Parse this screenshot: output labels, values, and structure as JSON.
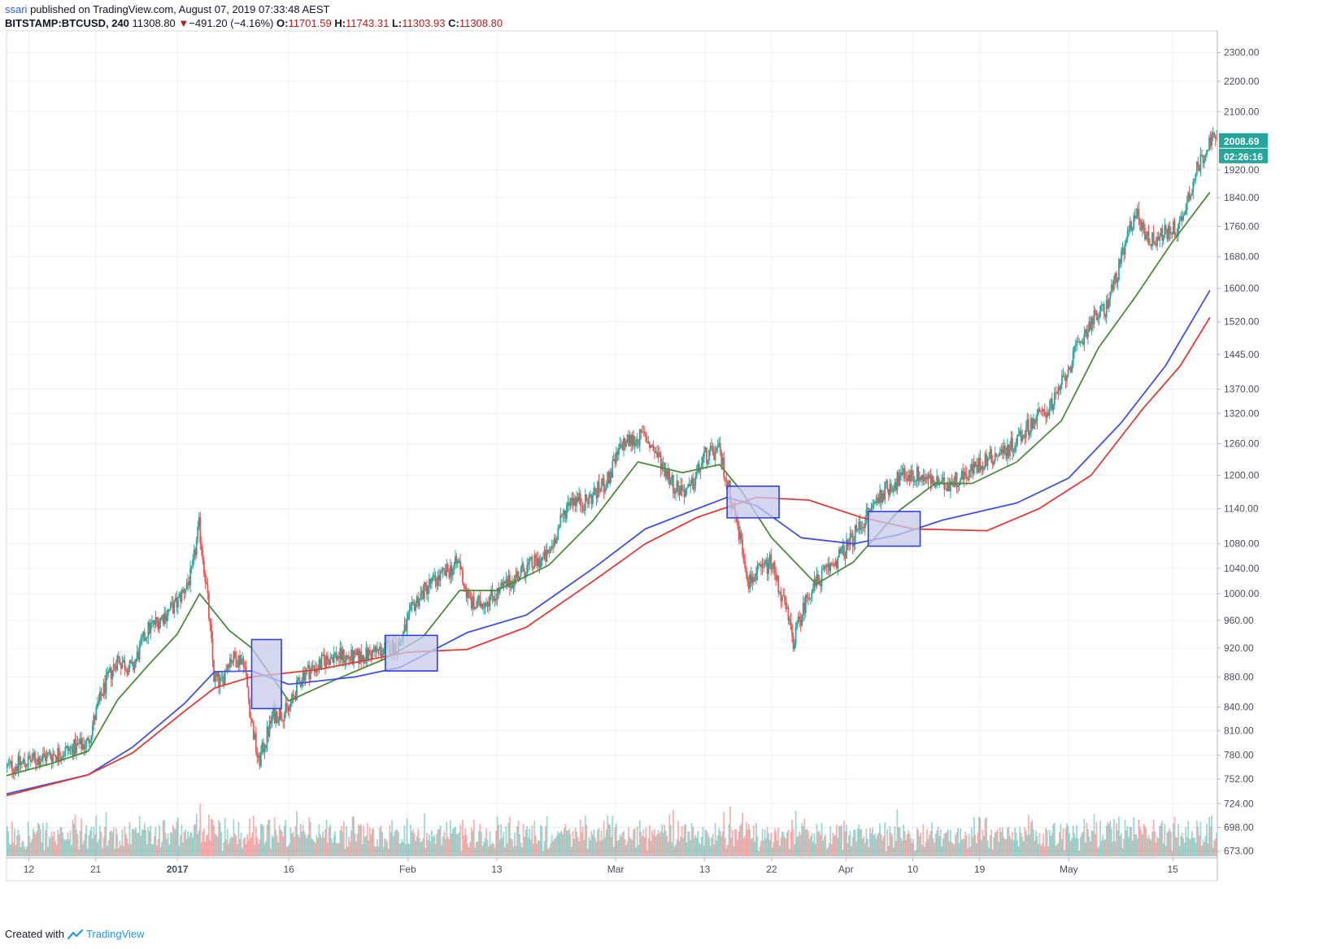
{
  "header": {
    "author": "ssari",
    "published_text": "published on TradingView.com, August 07, 2019 07:33:48 AEST",
    "symbol": "BITSTAMP:BTCUSD, 240",
    "last": "11308.80",
    "change_arrow": "▼",
    "change": "−491.20 (−4.16%)",
    "o_label": "O:",
    "o_value": "11701.59",
    "h_label": "H:",
    "h_value": "11743.31",
    "l_label": "L:",
    "l_value": "11303.93",
    "c_label": "C:",
    "c_value": "11308.80"
  },
  "footer": {
    "created_with": "Created with",
    "brand": "TradingView"
  },
  "colors": {
    "up": "#26a69a",
    "down": "#ef5350",
    "ema_short": "#4c8a3c",
    "ema_mid": "#3f51e6",
    "ema_long": "#e53935",
    "grid": "#eceff2",
    "box_fill": "#c5cae9",
    "box_stroke": "#2f3fe0",
    "price_badge": "#26a69a"
  },
  "chart_data": {
    "type": "candlestick",
    "y_scale": "log",
    "ylim": [
      666,
      2360
    ],
    "y_ticks": [
      2300,
      2200,
      2100,
      1920,
      1840,
      1760,
      1680,
      1600,
      1520,
      1445,
      1370,
      1320,
      1260,
      1200,
      1140,
      1080,
      1040,
      1000,
      960,
      920,
      880,
      840,
      810,
      780,
      752,
      724,
      698,
      673
    ],
    "y_tick_labels": [
      "2300.00",
      "2200.00",
      "2100.00",
      "1920.00",
      "1840.00",
      "1760.00",
      "1680.00",
      "1600.00",
      "1520.00",
      "1445.00",
      "1370.00",
      "1320.00",
      "1260.00",
      "1200.00",
      "1140.00",
      "1080.00",
      "1040.00",
      "1000.00",
      "960.00",
      "920.00",
      "880.00",
      "840.00",
      "810.00",
      "780.00",
      "752.00",
      "724.00",
      "698.00",
      "673.00"
    ],
    "x_tick_labels": [
      "12",
      "21",
      "2017",
      "16",
      "Feb",
      "13",
      "Mar",
      "13",
      "22",
      "Apr",
      "10",
      "19",
      "May",
      "15"
    ],
    "x_tick_dates": [
      "2016-12-12",
      "2016-12-21",
      "2017-01-01",
      "2017-01-16",
      "2017-02-01",
      "2017-02-13",
      "2017-03-01",
      "2017-03-13",
      "2017-03-22",
      "2017-04-01",
      "2017-04-10",
      "2017-04-19",
      "2017-05-01",
      "2017-05-15"
    ],
    "x_range": [
      "2016-12-09",
      "2017-05-21"
    ],
    "last_price": "2008.69",
    "countdown": "02:26:16",
    "price_path": [
      [
        "2016-12-09",
        765
      ],
      [
        "2016-12-13",
        775
      ],
      [
        "2016-12-17",
        785
      ],
      [
        "2016-12-20",
        795
      ],
      [
        "2016-12-22",
        860
      ],
      [
        "2016-12-24",
        905
      ],
      [
        "2016-12-26",
        890
      ],
      [
        "2016-12-28",
        945
      ],
      [
        "2016-12-30",
        965
      ],
      [
        "2017-01-01",
        985
      ],
      [
        "2017-01-03",
        1030
      ],
      [
        "2017-01-04",
        1110
      ],
      [
        "2017-01-05",
        1010
      ],
      [
        "2017-01-06",
        880
      ],
      [
        "2017-01-07",
        870
      ],
      [
        "2017-01-08",
        905
      ],
      [
        "2017-01-10",
        905
      ],
      [
        "2017-01-11",
        825
      ],
      [
        "2017-01-12",
        770
      ],
      [
        "2017-01-14",
        830
      ],
      [
        "2017-01-16",
        835
      ],
      [
        "2017-01-18",
        885
      ],
      [
        "2017-01-20",
        895
      ],
      [
        "2017-01-22",
        910
      ],
      [
        "2017-01-25",
        905
      ],
      [
        "2017-01-28",
        915
      ],
      [
        "2017-01-31",
        925
      ],
      [
        "2017-02-02",
        985
      ],
      [
        "2017-02-04",
        1015
      ],
      [
        "2017-02-06",
        1030
      ],
      [
        "2017-02-08",
        1050
      ],
      [
        "2017-02-09",
        1000
      ],
      [
        "2017-02-10",
        980
      ],
      [
        "2017-02-13",
        1000
      ],
      [
        "2017-02-17",
        1040
      ],
      [
        "2017-02-20",
        1060
      ],
      [
        "2017-02-23",
        1160
      ],
      [
        "2017-02-25",
        1150
      ],
      [
        "2017-02-28",
        1190
      ],
      [
        "2017-03-02",
        1260
      ],
      [
        "2017-03-05",
        1275
      ],
      [
        "2017-03-07",
        1230
      ],
      [
        "2017-03-09",
        1180
      ],
      [
        "2017-03-11",
        1170
      ],
      [
        "2017-03-13",
        1235
      ],
      [
        "2017-03-15",
        1245
      ],
      [
        "2017-03-17",
        1140
      ],
      [
        "2017-03-19",
        1020
      ],
      [
        "2017-03-20",
        1030
      ],
      [
        "2017-03-22",
        1050
      ],
      [
        "2017-03-24",
        975
      ],
      [
        "2017-03-25",
        930
      ],
      [
        "2017-03-27",
        1000
      ],
      [
        "2017-03-29",
        1030
      ],
      [
        "2017-04-01",
        1070
      ],
      [
        "2017-04-04",
        1130
      ],
      [
        "2017-04-06",
        1170
      ],
      [
        "2017-04-09",
        1200
      ],
      [
        "2017-04-11",
        1200
      ],
      [
        "2017-04-14",
        1180
      ],
      [
        "2017-04-17",
        1200
      ],
      [
        "2017-04-20",
        1230
      ],
      [
        "2017-04-23",
        1250
      ],
      [
        "2017-04-26",
        1300
      ],
      [
        "2017-04-29",
        1340
      ],
      [
        "2017-05-02",
        1450
      ],
      [
        "2017-05-04",
        1520
      ],
      [
        "2017-05-06",
        1550
      ],
      [
        "2017-05-08",
        1660
      ],
      [
        "2017-05-10",
        1800
      ],
      [
        "2017-05-12",
        1720
      ],
      [
        "2017-05-14",
        1740
      ],
      [
        "2017-05-16",
        1760
      ],
      [
        "2017-05-18",
        1900
      ],
      [
        "2017-05-20",
        2008.69
      ]
    ],
    "series": [
      {
        "role": "ema-short",
        "points": [
          [
            "2016-12-09",
            756
          ],
          [
            "2016-12-15",
            770
          ],
          [
            "2016-12-20",
            785
          ],
          [
            "2016-12-24",
            850
          ],
          [
            "2016-12-28",
            895
          ],
          [
            "2017-01-01",
            940
          ],
          [
            "2017-01-04",
            1000
          ],
          [
            "2017-01-08",
            945
          ],
          [
            "2017-01-11",
            920
          ],
          [
            "2017-01-16",
            848
          ],
          [
            "2017-01-22",
            875
          ],
          [
            "2017-01-29",
            905
          ],
          [
            "2017-02-03",
            935
          ],
          [
            "2017-02-08",
            1005
          ],
          [
            "2017-02-13",
            1005
          ],
          [
            "2017-02-20",
            1045
          ],
          [
            "2017-02-26",
            1120
          ],
          [
            "2017-03-04",
            1225
          ],
          [
            "2017-03-10",
            1205
          ],
          [
            "2017-03-15",
            1220
          ],
          [
            "2017-03-18",
            1170
          ],
          [
            "2017-03-22",
            1090
          ],
          [
            "2017-03-28",
            1015
          ],
          [
            "2017-04-02",
            1050
          ],
          [
            "2017-04-08",
            1135
          ],
          [
            "2017-04-13",
            1185
          ],
          [
            "2017-04-18",
            1185
          ],
          [
            "2017-04-24",
            1225
          ],
          [
            "2017-04-30",
            1305
          ],
          [
            "2017-05-05",
            1460
          ],
          [
            "2017-05-10",
            1580
          ],
          [
            "2017-05-15",
            1720
          ],
          [
            "2017-05-20",
            1855
          ]
        ]
      },
      {
        "role": "ema-mid",
        "points": [
          [
            "2016-12-09",
            735
          ],
          [
            "2016-12-20",
            757
          ],
          [
            "2016-12-26",
            790
          ],
          [
            "2017-01-02",
            845
          ],
          [
            "2017-01-06",
            887
          ],
          [
            "2017-01-11",
            888
          ],
          [
            "2017-01-16",
            870
          ],
          [
            "2017-01-25",
            880
          ],
          [
            "2017-01-31",
            893
          ],
          [
            "2017-02-09",
            942
          ],
          [
            "2017-02-17",
            968
          ],
          [
            "2017-02-26",
            1040
          ],
          [
            "2017-03-05",
            1105
          ],
          [
            "2017-03-12",
            1140
          ],
          [
            "2017-03-16",
            1160
          ],
          [
            "2017-03-20",
            1145
          ],
          [
            "2017-03-26",
            1090
          ],
          [
            "2017-04-02",
            1080
          ],
          [
            "2017-04-08",
            1095
          ],
          [
            "2017-04-14",
            1120
          ],
          [
            "2017-04-24",
            1150
          ],
          [
            "2017-05-01",
            1195
          ],
          [
            "2017-05-08",
            1300
          ],
          [
            "2017-05-14",
            1420
          ],
          [
            "2017-05-20",
            1595
          ]
        ]
      },
      {
        "role": "ema-long",
        "points": [
          [
            "2016-12-09",
            733
          ],
          [
            "2016-12-20",
            757
          ],
          [
            "2016-12-26",
            783
          ],
          [
            "2017-01-02",
            835
          ],
          [
            "2017-01-06",
            865
          ],
          [
            "2017-01-11",
            880
          ],
          [
            "2017-01-20",
            890
          ],
          [
            "2017-02-01",
            914
          ],
          [
            "2017-02-09",
            918
          ],
          [
            "2017-02-17",
            950
          ],
          [
            "2017-02-26",
            1020
          ],
          [
            "2017-03-05",
            1080
          ],
          [
            "2017-03-12",
            1125
          ],
          [
            "2017-03-20",
            1160
          ],
          [
            "2017-03-27",
            1155
          ],
          [
            "2017-04-03",
            1125
          ],
          [
            "2017-04-10",
            1105
          ],
          [
            "2017-04-20",
            1102
          ],
          [
            "2017-04-27",
            1140
          ],
          [
            "2017-05-04",
            1200
          ],
          [
            "2017-05-11",
            1330
          ],
          [
            "2017-05-16",
            1420
          ],
          [
            "2017-05-20",
            1530
          ]
        ]
      }
    ],
    "annotations": [
      {
        "type": "rectangle",
        "from": "2017-01-11",
        "to": "2017-01-15",
        "ymin": 838,
        "ymax": 932
      },
      {
        "type": "rectangle",
        "from": "2017-01-29",
        "to": "2017-02-05",
        "ymin": 888,
        "ymax": 938
      },
      {
        "type": "rectangle",
        "from": "2017-03-16",
        "to": "2017-03-23",
        "ymin": 1124,
        "ymax": 1180
      },
      {
        "type": "rectangle",
        "from": "2017-04-04",
        "to": "2017-04-11",
        "ymin": 1076,
        "ymax": 1135
      }
    ]
  }
}
